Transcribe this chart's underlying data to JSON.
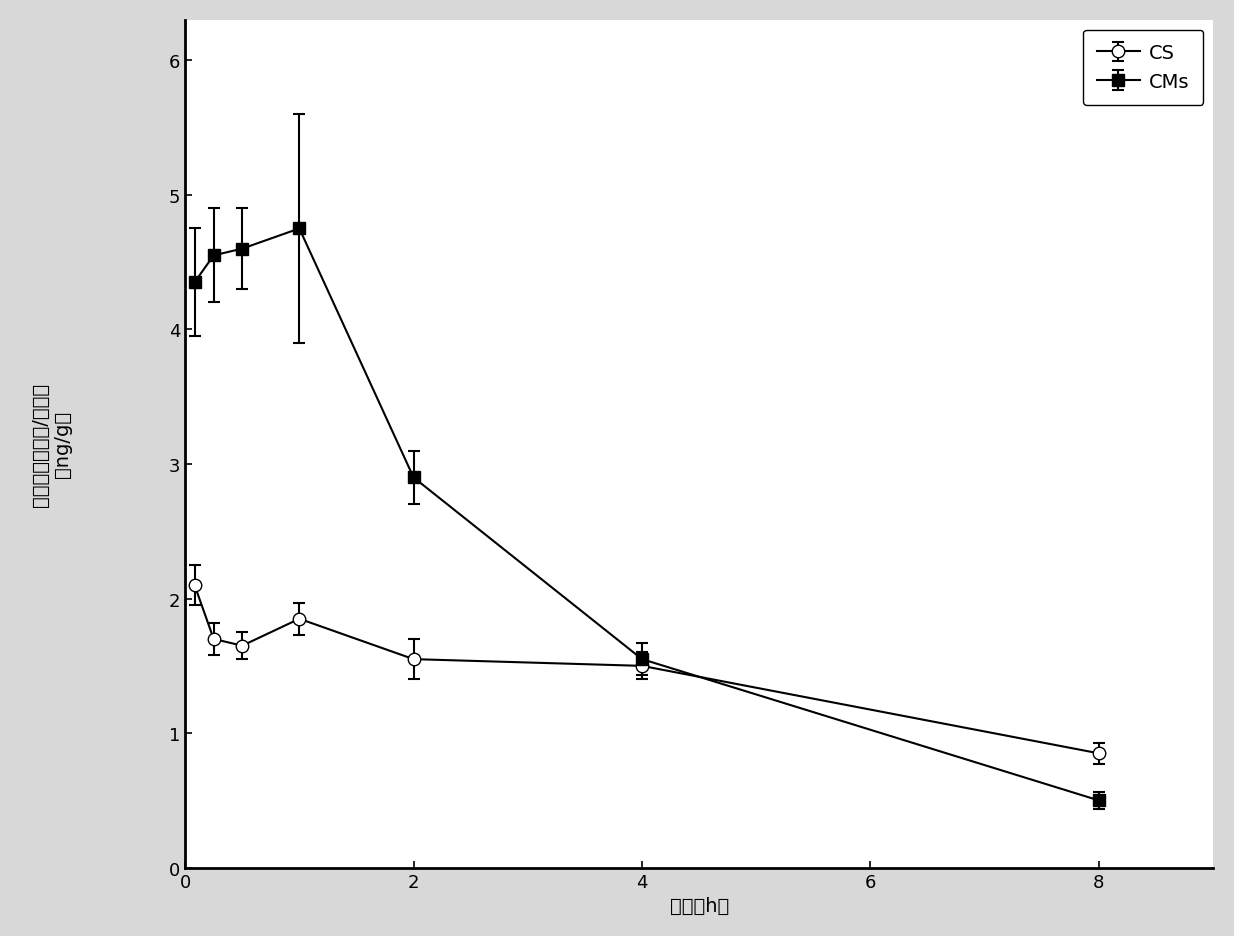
{
  "CS_x": [
    0.083,
    0.25,
    0.5,
    1.0,
    2.0,
    4.0,
    8.0
  ],
  "CS_y": [
    2.1,
    1.7,
    1.65,
    1.85,
    1.55,
    1.5,
    0.85
  ],
  "CS_yerr": [
    0.15,
    0.12,
    0.1,
    0.12,
    0.15,
    0.1,
    0.08
  ],
  "CMs_x": [
    0.083,
    0.25,
    0.5,
    1.0,
    2.0,
    4.0,
    8.0
  ],
  "CMs_y": [
    4.35,
    4.55,
    4.6,
    4.75,
    2.9,
    1.55,
    0.5
  ],
  "CMs_yerr": [
    0.4,
    0.35,
    0.3,
    0.85,
    0.2,
    0.12,
    0.06
  ],
  "xlabel": "时间（h）",
  "ylabel_line1": "脑内香豆素浓度/脑组织",
  "ylabel_line2": "（ng/g）",
  "xlim": [
    0,
    9
  ],
  "ylim": [
    0,
    6.3
  ],
  "xticks": [
    0,
    2,
    4,
    6,
    8
  ],
  "yticks": [
    0,
    1,
    2,
    3,
    4,
    5,
    6
  ],
  "legend_CS": "CS",
  "legend_CMs": "CMs",
  "bg_color": "#d8d8d8",
  "plot_bg_color": "#ffffff",
  "line_color": "#000000",
  "label_fontsize": 14,
  "tick_fontsize": 13,
  "legend_fontsize": 14
}
